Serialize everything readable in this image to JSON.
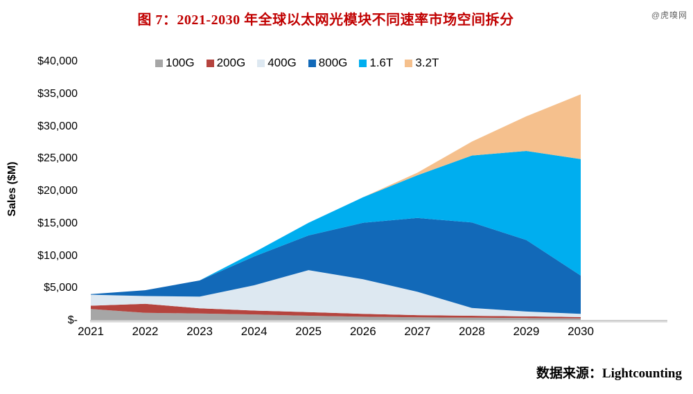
{
  "page": {
    "title": "图 7：2021-2030 年全球以太网光模块不同速率市场空间拆分",
    "title_color": "#c00000",
    "watermark": "@虎嗅网",
    "source": "数据来源：Lightcounting"
  },
  "chart_data": {
    "type": "area",
    "stacked": true,
    "title": "图 7：2021-2030 年全球以太网光模块不同速率市场空间拆分",
    "ylabel": "Sales ($M)",
    "xlabel": "",
    "categories": [
      2021,
      2022,
      2023,
      2024,
      2025,
      2026,
      2027,
      2028,
      2029,
      2030
    ],
    "ylim": [
      0,
      40000
    ],
    "grid": false,
    "legend_position": "top",
    "y_ticks": [
      {
        "value": 0,
        "label": "$-"
      },
      {
        "value": 5000,
        "label": "$5,000"
      },
      {
        "value": 10000,
        "label": "$10,000"
      },
      {
        "value": 15000,
        "label": "$15,000"
      },
      {
        "value": 20000,
        "label": "$20,000"
      },
      {
        "value": 25000,
        "label": "$25,000"
      },
      {
        "value": 30000,
        "label": "$30,000"
      },
      {
        "value": 35000,
        "label": "$35,000"
      },
      {
        "value": 40000,
        "label": "$40,000"
      }
    ],
    "series": [
      {
        "name": "100G",
        "color": "#a6a6a6",
        "values": [
          1800,
          1200,
          1100,
          950,
          750,
          600,
          500,
          450,
          400,
          350
        ]
      },
      {
        "name": "200G",
        "color": "#b5443e",
        "values": [
          500,
          1400,
          800,
          600,
          550,
          450,
          350,
          300,
          250,
          200
        ]
      },
      {
        "name": "400G",
        "color": "#dde8f1",
        "values": [
          1700,
          1200,
          1800,
          3900,
          6500,
          5350,
          3600,
          1200,
          750,
          500
        ]
      },
      {
        "name": "800G",
        "color": "#1269b8",
        "values": [
          100,
          900,
          2500,
          4450,
          5350,
          8700,
          11400,
          13200,
          11050,
          5900
        ]
      },
      {
        "name": "1.6T",
        "color": "#00aeef",
        "values": [
          0,
          0,
          0,
          650,
          1950,
          3950,
          6600,
          10350,
          13750,
          18000
        ]
      },
      {
        "name": "3.2T",
        "color": "#f5c08d",
        "values": [
          0,
          0,
          0,
          0,
          0,
          0,
          400,
          2150,
          5350,
          10000
        ]
      }
    ]
  }
}
